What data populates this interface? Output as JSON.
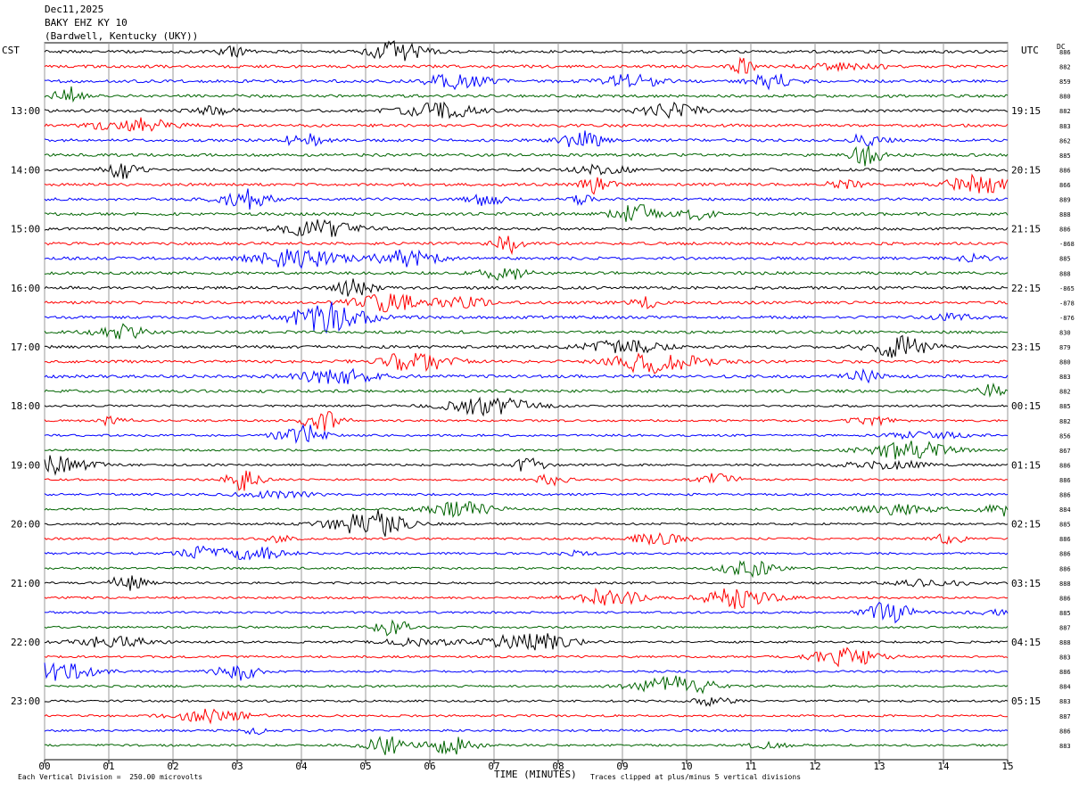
{
  "header": {
    "line1": "Dec11,2025",
    "line2": "BAKY EHZ KY 10",
    "line3": "(Bardwell, Kentucky (UKY))"
  },
  "left_tz": "CST",
  "right_tz": "UTC",
  "dc_label": "DC",
  "footer": {
    "scale_note": "Each Vertical Division =  250.00 microvolts",
    "clip_note": "Traces clipped at plus/minus 5 vertical divisions"
  },
  "chart_data": {
    "type": "line",
    "title": "Dec11,2025 BAKY EHZ KY 10 (Bardwell, Kentucky (UKY))",
    "xlabel": "TIME (MINUTES)",
    "ylabel": "",
    "xlim": [
      0,
      15
    ],
    "x_ticks": [
      "00",
      "01",
      "02",
      "03",
      "04",
      "05",
      "06",
      "07",
      "08",
      "09",
      "10",
      "11",
      "12",
      "13",
      "14",
      "15"
    ],
    "rows": 48,
    "minutes_per_row": 15,
    "trace_colors": [
      "#000000",
      "#ff0000",
      "#0000ff",
      "#006400"
    ],
    "left_hour_labels": [
      "13:00",
      "14:00",
      "15:00",
      "16:00",
      "17:00",
      "18:00",
      "19:00",
      "20:00",
      "21:00",
      "22:00",
      "23:00"
    ],
    "right_hour_labels": [
      "19:15",
      "20:15",
      "21:15",
      "22:15",
      "23:15",
      "00:15",
      "01:15",
      "02:15",
      "03:15",
      "04:15",
      "05:15"
    ],
    "dc_offsets": [
      "886",
      "882",
      "859",
      "880",
      "882",
      "883",
      "862",
      "885",
      "886",
      "866",
      "889",
      "888",
      "886",
      "-868",
      "885",
      "888",
      "-865",
      "-878",
      "-876",
      "830",
      "879",
      "880",
      "883",
      "882",
      "885",
      "882",
      "856",
      "867",
      "886",
      "886",
      "886",
      "884",
      "885",
      "886",
      "886",
      "886",
      "888",
      "886",
      "885",
      "887",
      "888",
      "883",
      "886",
      "884",
      "883",
      "887",
      "886",
      "883"
    ],
    "grid": true
  }
}
